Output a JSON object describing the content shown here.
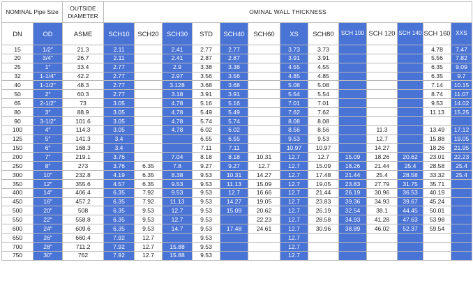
{
  "header": {
    "nominal": "NOMINAL Pipe Size",
    "outside": "OUTSIDE DIAMETER",
    "thickness": "OMINAL WALL THICKNESS",
    "columns": [
      "DN",
      "OD",
      "ASME",
      "SCH10",
      "SCH20",
      "SCH30",
      "STD",
      "SCH40",
      "SCH60",
      "XS",
      "SCH80",
      "SCH 100",
      "SCH 120",
      "SCH 140",
      "SCH 160",
      "XXS"
    ]
  },
  "rows": [
    [
      "15",
      "1/2″",
      "21.3",
      "2.11",
      "",
      "2.41",
      "2.77",
      "2.77",
      "",
      "3.73",
      "3.73",
      "",
      "",
      "",
      "4.78",
      "7.47"
    ],
    [
      "20",
      "3/4″",
      "26.7",
      "2.11",
      "",
      "2.41",
      "2.87",
      "2.87",
      "",
      "3.91",
      "3.91",
      "",
      "",
      "",
      "5.56",
      "7.82"
    ],
    [
      "25",
      "1″",
      "33.4",
      "2.77",
      "",
      "2.9",
      "3.38",
      "3.38",
      "",
      "4.55",
      "4.55",
      "",
      "",
      "",
      "6.35",
      "9.09"
    ],
    [
      "32",
      "1-1/4″",
      "42.2",
      "2.77",
      "",
      "2.97",
      "3.56",
      "3.56",
      "",
      "4.85",
      "4.85",
      "",
      "",
      "",
      "6.35",
      "9.7"
    ],
    [
      "40",
      "1-1/2″",
      "48.3",
      "2.77",
      "",
      "3.128",
      "3.68",
      "3.68",
      "",
      "5.08",
      "5.08",
      "",
      "",
      "",
      "7.14",
      "10.15"
    ],
    [
      "50",
      "2″",
      "60.3",
      "2.77",
      "",
      "3.18",
      "3.91",
      "3.91",
      "",
      "5.54",
      "5.54",
      "",
      "",
      "",
      "8.74",
      "11.07"
    ],
    [
      "65",
      "2-1/2″",
      "73",
      "3.05",
      "",
      "4.78",
      "5.16",
      "5.16",
      "",
      "7.01",
      "7.01",
      "",
      "",
      "",
      "9.53",
      "14.02"
    ],
    [
      "80",
      "3″",
      "88.9",
      "3.05",
      "",
      "4.78",
      "5.49",
      "5.49",
      "",
      "7.62",
      "7.62",
      "",
      "",
      "",
      "11.13",
      "15.25"
    ],
    [
      "90",
      "3-1/2″",
      "101.6",
      "3.05",
      "",
      "4.78",
      "5.74",
      "5.74",
      "",
      "8.08",
      "8.08",
      "",
      "",
      "",
      "",
      ""
    ],
    [
      "100",
      "4″",
      "114.3",
      "3.05",
      "",
      "4.78",
      "6.02",
      "6.02",
      "",
      "8.56",
      "8.56",
      "",
      "11.3",
      "",
      "13.49",
      "17.12"
    ],
    [
      "125",
      "5″",
      "141.3",
      "3.4",
      "",
      "",
      "6.55",
      "6.55",
      "",
      "9.53",
      "9.53",
      "",
      "12.7",
      "",
      "15.88",
      "19.05"
    ],
    [
      "150",
      "6″",
      "168.3",
      "3.4",
      "",
      "",
      "7.11",
      "7.11",
      "",
      "10.97",
      "10.97",
      "",
      "14.27",
      "",
      "18.26",
      "21.95"
    ],
    [
      "200",
      "7″",
      "219.1",
      "3.76",
      "",
      "7.04",
      "8.18",
      "8.18",
      "10.31",
      "12.7",
      "12.7",
      "15.09",
      "18.26",
      "20.62",
      "23.01",
      "22.23"
    ],
    [
      "250",
      "8″",
      "273",
      "3.76",
      "6.35",
      "7.8",
      "9.27",
      "9.27",
      "12.7",
      "12.7",
      "15.09",
      "18.26",
      "21.44",
      "25.4",
      "28.58",
      "25.4"
    ],
    [
      "300",
      "10″",
      "232.8",
      "4.19",
      "6.35",
      "8.38",
      "9.53",
      "10.31",
      "14.27",
      "12.7",
      "17.48",
      "21.44",
      "25.4",
      "28.58",
      "33.32",
      "25.4"
    ],
    [
      "350",
      "12″",
      "355.6",
      "4.57",
      "6.35",
      "9.53",
      "9.53",
      "11.13",
      "15.09",
      "12.7",
      "19.05",
      "23.83",
      "27.79",
      "31.75",
      "35.71",
      ""
    ],
    [
      "400",
      "14″",
      "406.4",
      "6.35",
      "7.92",
      "9.53",
      "9.53",
      "12.7",
      "16.66",
      "12.7",
      "21.44",
      "26.19",
      "30.96",
      "36.53",
      "40.19",
      ""
    ],
    [
      "450",
      "16″",
      "457.2",
      "6.35",
      "7.92",
      "11.13",
      "9.53",
      "14.27",
      "19.05",
      "12.7",
      "23.83",
      "39.36",
      "34.93",
      "39.67",
      "45.24",
      ""
    ],
    [
      "500",
      "20″",
      "508",
      "6.35",
      "9.53",
      "12.7",
      "9.53",
      "15.09",
      "20.62",
      "12.7",
      "26.19",
      "32.54",
      "38.1",
      "44.45",
      "50.01",
      ""
    ],
    [
      "550",
      "22″",
      "558.8",
      "6.35",
      "9.53",
      "12.7",
      "9.53",
      "",
      "22.23",
      "12.7",
      "28.58",
      "34.93",
      "41.28",
      "47.63",
      "53.98",
      ""
    ],
    [
      "600",
      "24″",
      "609.6",
      "6.35",
      "9.53",
      "14.7",
      "9.53",
      "17.48",
      "24.61",
      "12.7",
      "30.96",
      "38.89",
      "46.02",
      "52.37",
      "59.54",
      ""
    ],
    [
      "650",
      "26″",
      "660.4",
      "7.92",
      "12.7",
      "",
      "9.53",
      "",
      "",
      "12.7",
      "",
      "",
      "",
      "",
      "",
      ""
    ],
    [
      "700",
      "28″",
      "711.2",
      "7.92",
      "12.7",
      "15.88",
      "9.53",
      "",
      "",
      "12.7",
      "",
      "",
      "",
      "",
      "",
      ""
    ],
    [
      "750",
      "30″",
      "762",
      "7.92",
      "12.7",
      "15.88",
      "9.53",
      "",
      "",
      "12.7",
      "",
      "",
      "",
      "",
      "",
      ""
    ]
  ],
  "colors": {
    "accent": "#4a73d6",
    "accent_text": "#ffffff",
    "grid": "#b9b9b9",
    "text": "#222222"
  }
}
